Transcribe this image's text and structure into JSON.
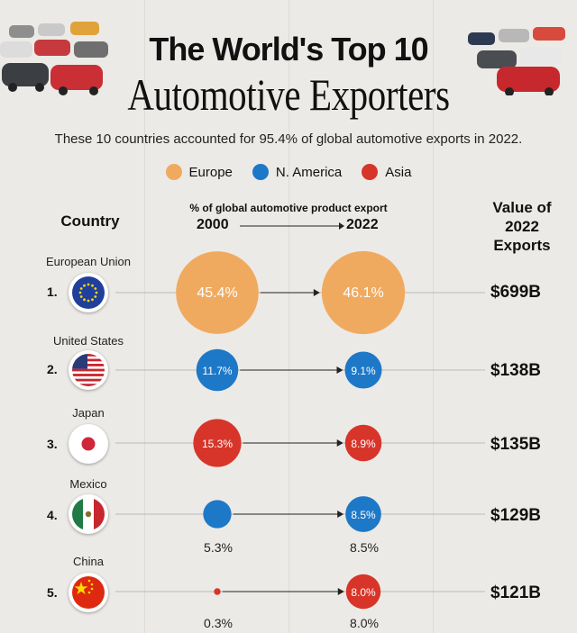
{
  "title_line1": "The World's Top 10",
  "title_line2": "Automotive Exporters",
  "subtitle": "These 10 countries accounted for 95.4% of global automotive exports in 2022.",
  "legend": [
    {
      "label": "Europe",
      "color": "#f0aa5f"
    },
    {
      "label": "N. America",
      "color": "#1d78c8"
    },
    {
      "label": "Asia",
      "color": "#d8352a"
    }
  ],
  "headers": {
    "country": "Country",
    "pct": "% of global automotive product export",
    "year_start": "2000",
    "year_end": "2022",
    "value": "Value of 2022 Exports"
  },
  "chart_data": {
    "type": "bubble-comparison",
    "title": "The World's Top 10 Automotive Exporters",
    "x": [
      "2000",
      "2022"
    ],
    "units": "% of global automotive product export",
    "rows": [
      {
        "rank": "1.",
        "country": "European Union",
        "region": "Europe",
        "share_2000": 45.4,
        "share_2022": 46.1,
        "label_2000": "45.4%",
        "label_2022": "46.1%",
        "value": "$699B"
      },
      {
        "rank": "2.",
        "country": "United States",
        "region": "N. America",
        "share_2000": 11.7,
        "share_2022": 9.1,
        "label_2000": "11.7%",
        "label_2022": "9.1%",
        "value": "$138B"
      },
      {
        "rank": "3.",
        "country": "Japan",
        "region": "Asia",
        "share_2000": 15.3,
        "share_2022": 8.9,
        "label_2000": "15.3%",
        "label_2022": "8.9%",
        "value": "$135B"
      },
      {
        "rank": "4.",
        "country": "Mexico",
        "region": "N. America",
        "share_2000": 5.3,
        "share_2022": 8.5,
        "label_2000": "5.3%",
        "label_2022": "8.5%",
        "value": "$129B"
      },
      {
        "rank": "5.",
        "country": "China",
        "region": "Asia",
        "share_2000": 0.3,
        "share_2022": 8.0,
        "label_2000": "0.3%",
        "label_2022": "8.0%",
        "value": "$121B"
      }
    ]
  }
}
